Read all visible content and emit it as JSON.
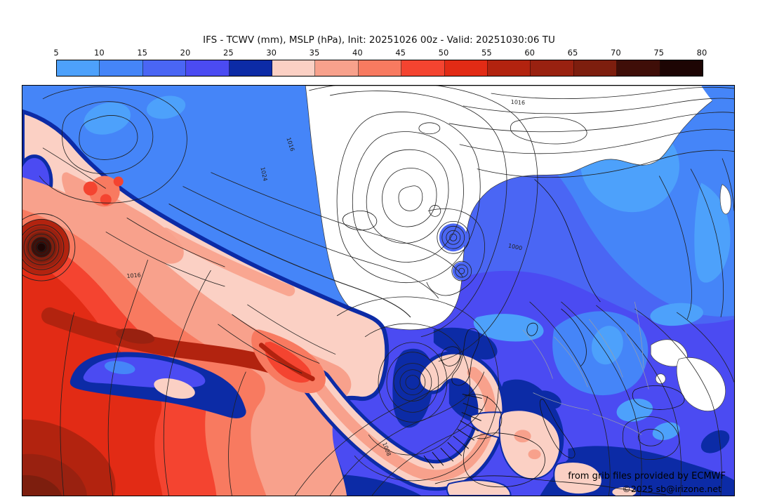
{
  "title": "IFS - TCWV (mm), MSLP (hPa), Init: 20251026 00z - Valid: 20251030:06 TU",
  "colorbar": {
    "units": "mm",
    "ticks": [
      "5",
      "10",
      "15",
      "20",
      "25",
      "30",
      "35",
      "40",
      "45",
      "50",
      "55",
      "60",
      "65",
      "70",
      "75",
      "80"
    ],
    "segment_colors": [
      "#4da1fb",
      "#4585f8",
      "#4a66f4",
      "#4b4bf2",
      "#0c2ba6",
      "#fbd0c4",
      "#f8a18c",
      "#f87a60",
      "#f44430",
      "#e22b15",
      "#b2230f",
      "#992110",
      "#7d1e0e",
      "#3f0e08",
      "#1d0504"
    ],
    "border_color": "#000000"
  },
  "palette": {
    "b5": "#4da1fb",
    "b10": "#4585f8",
    "b15": "#4a66f4",
    "b20": "#4b4bf2",
    "b25": "#0c2ba6",
    "r30": "#fbd0c4",
    "r35": "#f8a18c",
    "r40": "#f87a60",
    "r45": "#f44430",
    "r50": "#e22b15",
    "r55": "#b2230f",
    "r60": "#992110",
    "r65": "#7d1e0e",
    "r70": "#3f0e08",
    "r75": "#1d0504",
    "white": "#ffffff",
    "contour": "#1f1f1f",
    "coast": "#121212",
    "gray_border": "#9aa0a8"
  },
  "map": {
    "pressure_labels": [
      "1016",
      "1024",
      "1016",
      "1000",
      "1008",
      "1016"
    ],
    "credits_line1": "from grib files provided by ECMWF",
    "credits_line2": "©2025 sb@irizone.net"
  }
}
